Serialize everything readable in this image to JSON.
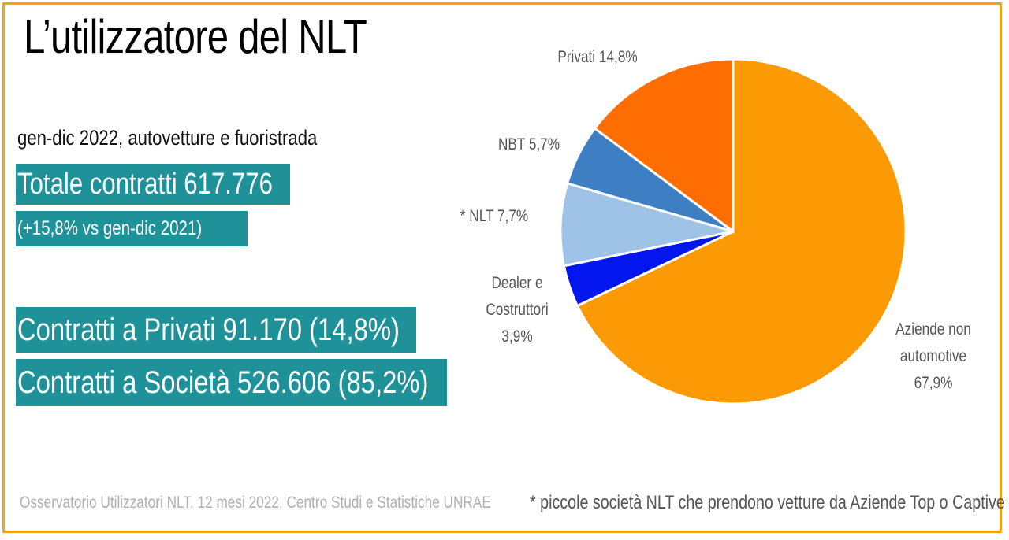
{
  "slide": {
    "title": "L’utilizzatore del NLT",
    "subtitle": "gen-dic 2022, autovetture e fuoristrada",
    "total_contracts": "Totale contratti 617.776",
    "change_vs_prev": "(+15,8% vs  gen-dic 2021)",
    "private_contracts": "Contratti a Privati  91.170 (14,8%)",
    "company_contracts": "Contratti a Società 526.606 (85,2%)",
    "footer_source": "Osservatorio Utilizzatori NLT, 12 mesi 2022, Centro Studi e Statistiche UNRAE",
    "footer_note": "* piccole società NLT che prendono vetture da Aziende Top o Captive",
    "colors": {
      "frame": "#f4a419",
      "highlight": "#1f9299"
    }
  },
  "chart_data": {
    "type": "pie",
    "slices": [
      {
        "label_lines": [
          "Aziende non",
          "automotive",
          "67,9%"
        ],
        "value": 67.9,
        "color": "#fb9a05"
      },
      {
        "label_lines": [
          "Dealer e",
          "Costruttori",
          "3,9%"
        ],
        "value": 3.9,
        "color": "#0416ee"
      },
      {
        "label_lines": [
          "* NLT 7,7%"
        ],
        "value": 7.7,
        "color": "#9fc3e7"
      },
      {
        "label_lines": [
          "NBT 5,7%"
        ],
        "value": 5.7,
        "color": "#3e7fc4"
      },
      {
        "label_lines": [
          "Privati 14,8%"
        ],
        "value": 14.8,
        "color": "#ff6e03"
      }
    ],
    "start_angle_deg": 0,
    "direction": "clockwise"
  }
}
